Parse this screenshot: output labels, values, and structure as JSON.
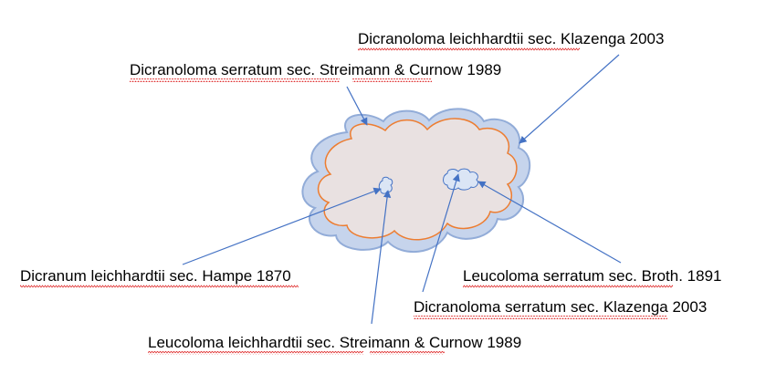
{
  "colors": {
    "cloud_outer_fill": "#c6d4ec",
    "cloud_outer_stroke": "#92acd8",
    "cloud_inner_fill": "#e9e1e1",
    "cloud_inner_stroke": "#ed7d31",
    "small_cloud_fill": "#dbe5f5",
    "small_cloud_stroke": "#4472c4",
    "arrow": "#4472c4",
    "spellcheck_underline": "#e03030"
  },
  "labels": {
    "dicranoloma_leichhardtii_klazenga": "Dicranoloma leichhardtii sec. Klazenga 2003",
    "dicranoloma_serratum_streimann": "Dicranoloma serratum sec. Streimann & Curnow 1989",
    "dicranum_leichhardtii_hampe": "Dicranum leichhardtii sec. Hampe 1870",
    "leucoloma_serratum_broth": "Leucoloma serratum sec. Broth. 1891",
    "dicranoloma_serratum_klazenga": "Dicranoloma serratum sec. Klazenga 2003",
    "leucoloma_leichhardtii_streimann": "Leucoloma leichhardtii sec. Streimann & Curnow 1989"
  }
}
